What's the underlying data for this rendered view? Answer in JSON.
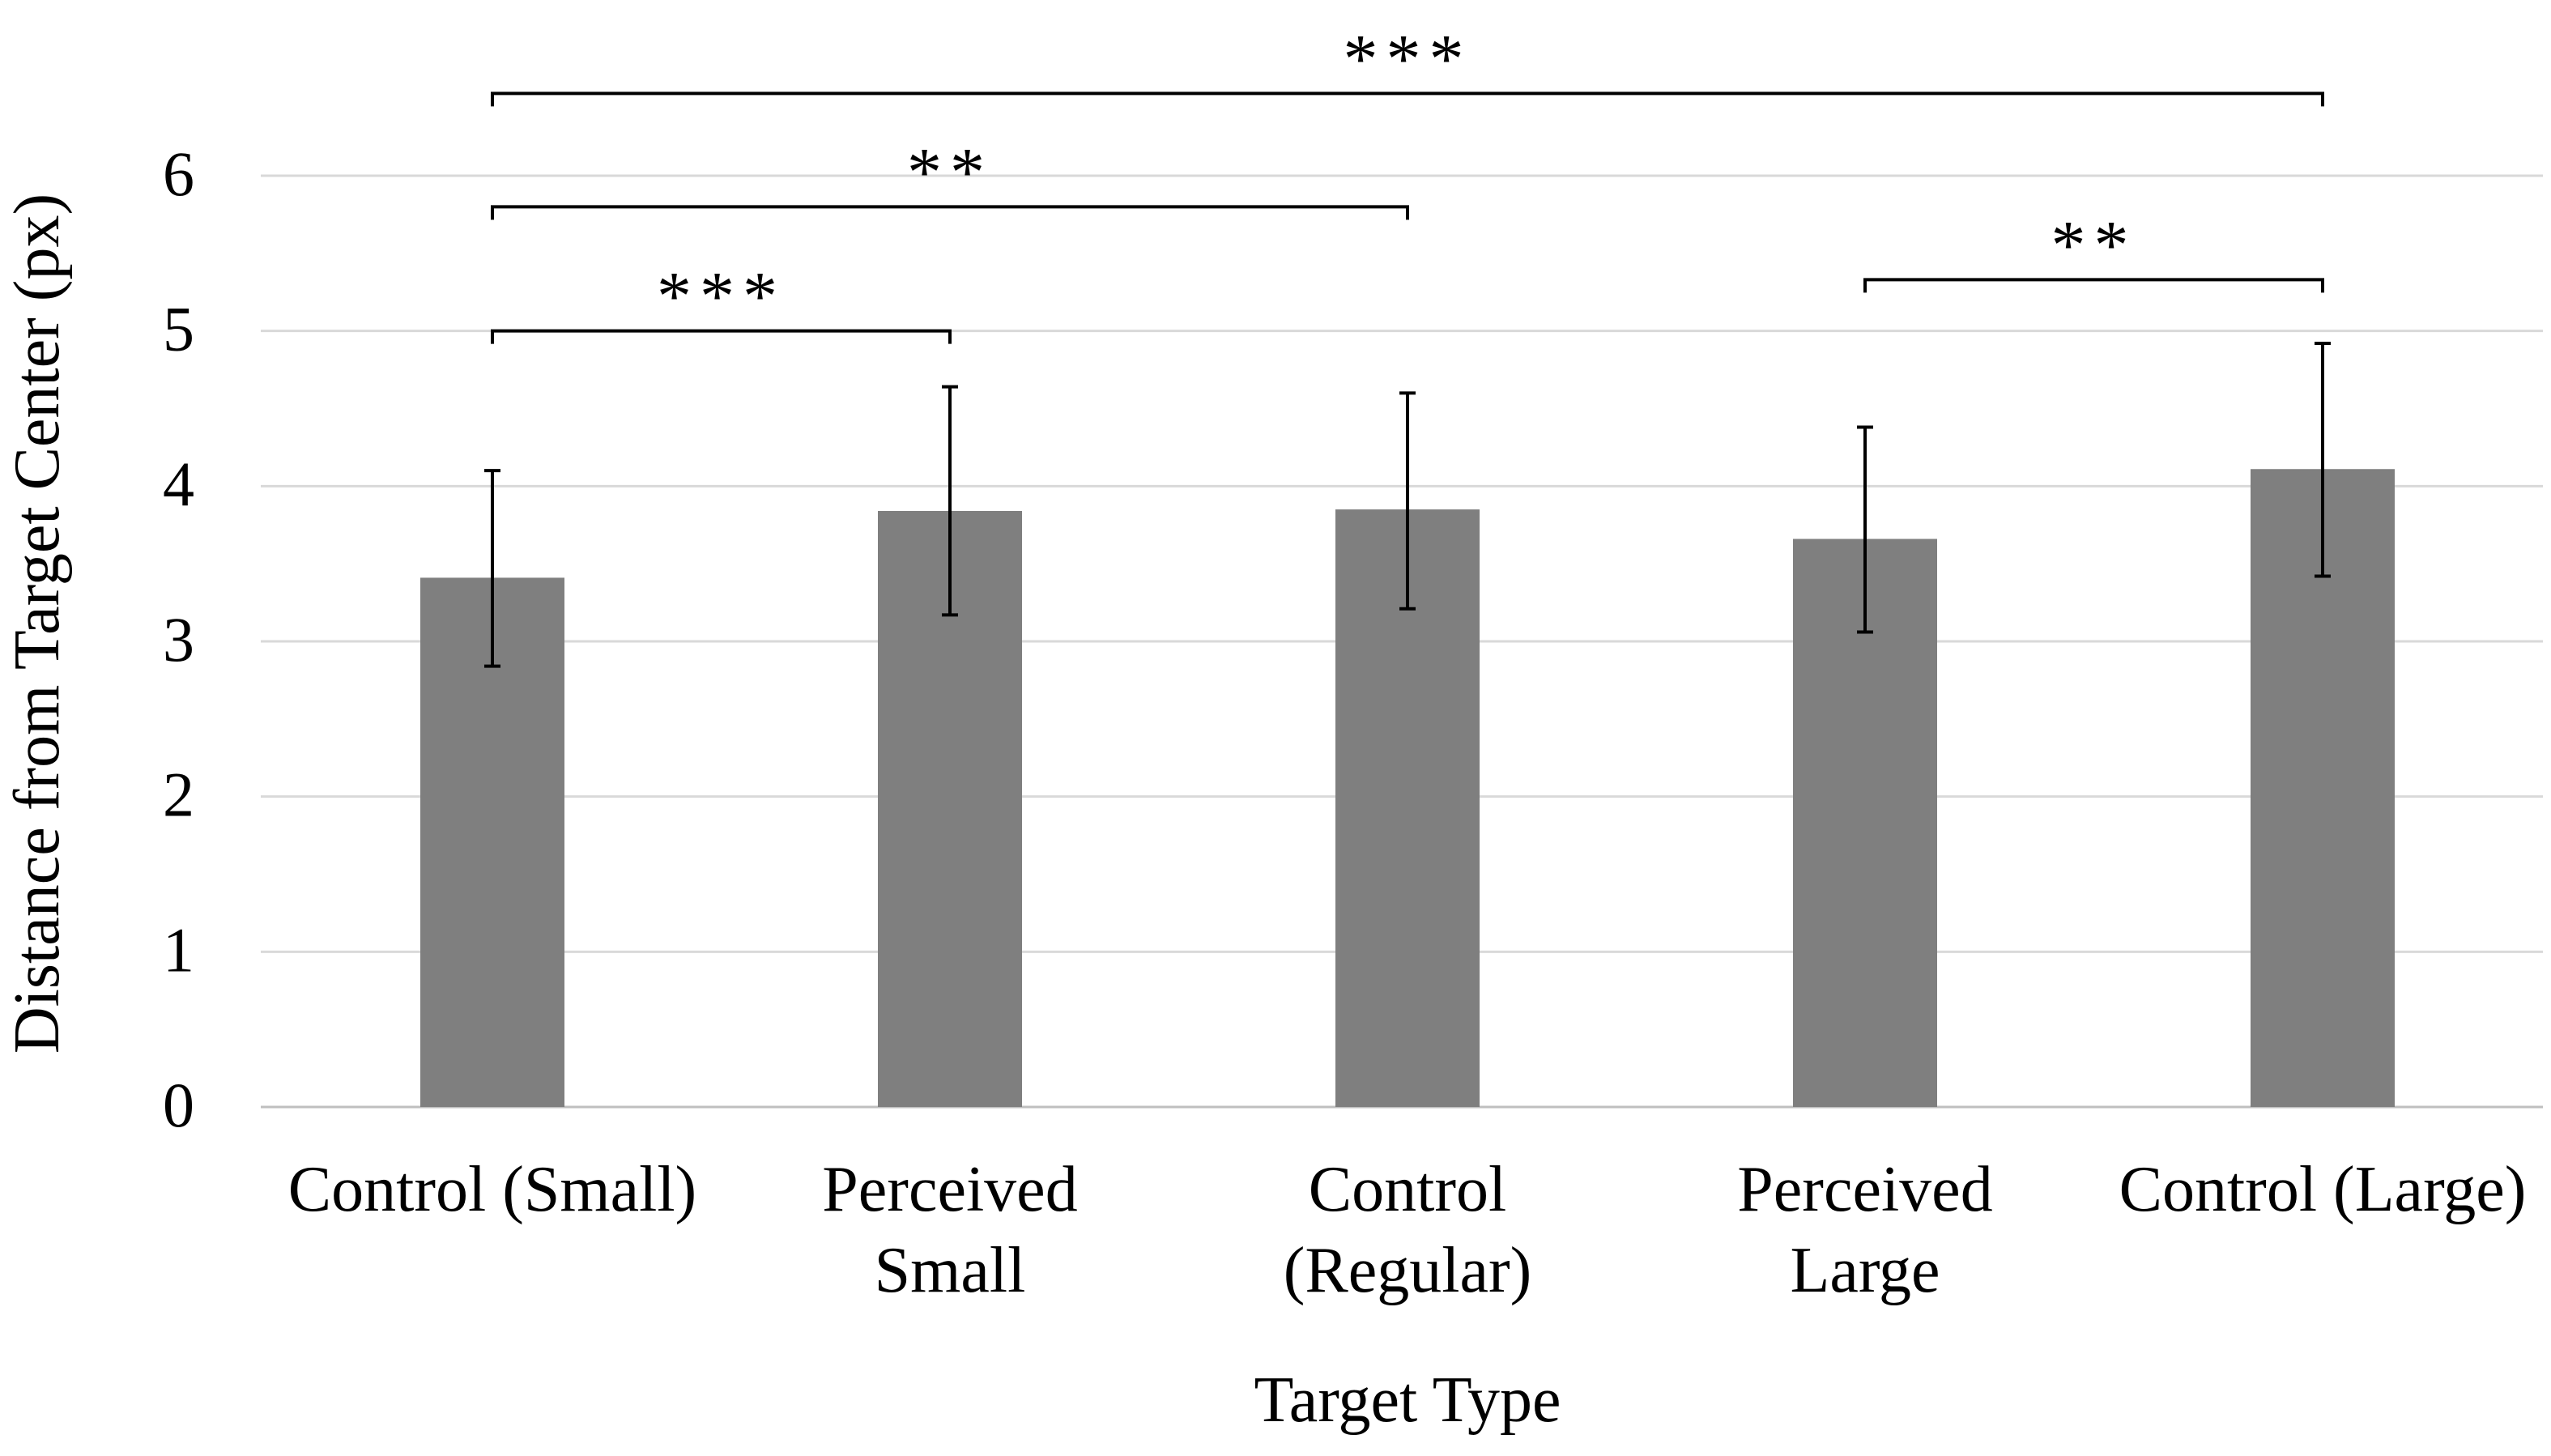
{
  "colors": {
    "bar": "#7f7f7f",
    "gridline": "#d9d9d9",
    "axis": "#bfbfbf",
    "error": "#000000",
    "bracket": "#000000"
  },
  "chart_data": {
    "type": "bar",
    "title": "",
    "xlabel": "Target Type",
    "ylabel": "Distance from Target Center (px)",
    "ylim": [
      0,
      6
    ],
    "yticks": [
      0,
      1,
      2,
      3,
      4,
      5,
      6
    ],
    "grid": true,
    "categories": [
      [
        "Control (Small)"
      ],
      [
        "Perceived",
        "Small"
      ],
      [
        "Control",
        "(Regular)"
      ],
      [
        "Perceived",
        "Large"
      ],
      [
        "Control (Large)"
      ]
    ],
    "values": [
      3.41,
      3.84,
      3.85,
      3.66,
      4.11
    ],
    "error_lower": [
      2.84,
      3.17,
      3.21,
      3.06,
      3.42
    ],
    "error_upper": [
      4.1,
      4.64,
      4.6,
      4.38,
      4.92
    ],
    "significance": [
      {
        "from": 0,
        "to": 1,
        "label": "***",
        "y": 5.0
      },
      {
        "from": 0,
        "to": 2,
        "label": "**",
        "y": 5.8
      },
      {
        "from": 3,
        "to": 4,
        "label": "**",
        "y": 5.33
      },
      {
        "from": 0,
        "to": 4,
        "label": "***",
        "y": 6.53
      }
    ]
  }
}
